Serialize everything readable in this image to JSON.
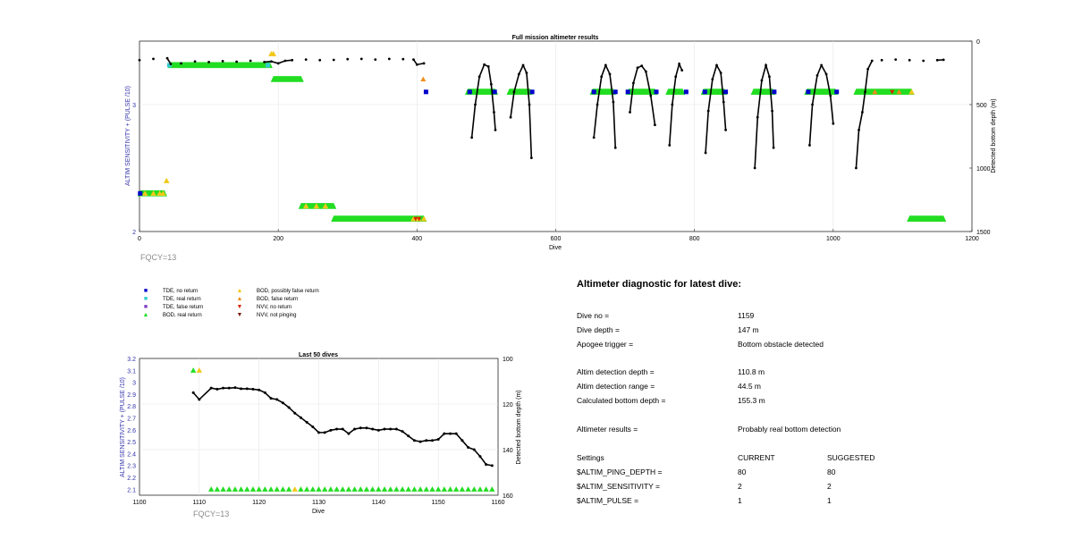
{
  "main_chart": {
    "title": "Full mission altimeter results",
    "xlabel": "Dive",
    "ylabel_left": "ALTIM SENSITIVITY + (PULSE /10)",
    "ylabel_right": "Detected bottom depth (m)",
    "x_ticks": [
      "0",
      "200",
      "400",
      "600",
      "800",
      "1000",
      "1200"
    ],
    "y_left_ticks": [
      "2",
      "3"
    ],
    "y_right_ticks": [
      "0",
      "500",
      "1000",
      "1500"
    ],
    "fqcy_label": "FQCY=13"
  },
  "small_chart": {
    "title": "Last 50 dives",
    "xlabel": "Dive",
    "ylabel_left": "ALTIM SENSITIVITY + (PULSE /10)",
    "ylabel_right": "Detected bottom depth (m)",
    "x_ticks": [
      "1100",
      "1110",
      "1120",
      "1130",
      "1140",
      "1150",
      "1160"
    ],
    "y_left_ticks": [
      "2.1",
      "2.2",
      "2.3",
      "2.4",
      "2.5",
      "2.6",
      "2.7",
      "2.8",
      "2.9",
      "3",
      "3.1",
      "3.2"
    ],
    "y_right_ticks": [
      "100",
      "120",
      "140",
      "160"
    ],
    "fqcy_label": "FQCY=13"
  },
  "legend": [
    {
      "symbol": "■",
      "color": "#0000cc",
      "label": "TDE, no return"
    },
    {
      "symbol": "■",
      "color": "#33cccc",
      "label": "TDE, real return"
    },
    {
      "symbol": "■",
      "color": "#7f3fbf",
      "label": "TDE, false return"
    },
    {
      "symbol": "▲",
      "color": "#22dd22",
      "label": "BOD, real return"
    },
    {
      "symbol": "▲",
      "color": "#f2c81a",
      "label": "BOD, possibly false return"
    },
    {
      "symbol": "▲",
      "color": "#f08c1a",
      "label": "BOD, false return"
    },
    {
      "symbol": "▼",
      "color": "#dd2200",
      "label": "NVV, no return"
    },
    {
      "symbol": "▼",
      "color": "#7a1a0a",
      "label": "NVV, not pinging"
    }
  ],
  "diagnostic": {
    "title": "Altimeter diagnostic for latest dive:",
    "rows": [
      {
        "label": "Dive no =",
        "value": "1159",
        "extra": ""
      },
      {
        "label": "Dive depth =",
        "value": "147 m",
        "extra": ""
      },
      {
        "label": "Apogee trigger =",
        "value": "Bottom obstacle detected",
        "extra": ""
      },
      {
        "label": "Altim detection depth =",
        "value": "110.8 m",
        "extra": ""
      },
      {
        "label": "Altim detection range =",
        "value": "44.5 m",
        "extra": ""
      },
      {
        "label": "Calculated bottom depth =",
        "value": "155.3 m",
        "extra": ""
      },
      {
        "label": "Altimeter results =",
        "value": "Probably real bottom detection",
        "extra": ""
      },
      {
        "label": "Settings",
        "value": "CURRENT",
        "extra": "SUGGESTED"
      },
      {
        "label": "$ALTIM_PING_DEPTH =",
        "value": "80",
        "extra": "80"
      },
      {
        "label": "$ALTIM_SENSITIVITY =",
        "value": "2",
        "extra": "2"
      },
      {
        "label": "$ALTIM_PULSE =",
        "value": "1",
        "extra": "1"
      }
    ]
  },
  "colors": {
    "tde_no_return": "#0000cc",
    "tde_real_return": "#33cccc",
    "bod_real_return": "#22dd22",
    "bod_possibly_false": "#f2c81a",
    "bod_false": "#f08c1a",
    "nvv_no_return": "#dd2200",
    "depth_line": "#000000",
    "left_axis_label": "#3333aa"
  },
  "chart_data": [
    {
      "type": "scatter",
      "title": "Full mission altimeter results",
      "xlabel": "Dive",
      "ylabel": "ALTIM SENSITIVITY + (PULSE /10)",
      "y2label": "Detected bottom depth (m)",
      "xlim": [
        0,
        1200
      ],
      "ylim": [
        2,
        3.5
      ],
      "y2lim": [
        1500,
        0
      ],
      "grid": true,
      "bod_real_segments": [
        {
          "x0": 1,
          "x1": 36,
          "y": 2.3
        },
        {
          "x0": 45,
          "x1": 188,
          "y": 3.31
        },
        {
          "x0": 193,
          "x1": 233,
          "y": 3.2
        },
        {
          "x0": 233,
          "x1": 280,
          "y": 2.2
        },
        {
          "x0": 280,
          "x1": 410,
          "y": 2.1
        },
        {
          "x0": 473,
          "x1": 513,
          "y": 3.1
        },
        {
          "x0": 533,
          "x1": 563,
          "y": 3.1
        },
        {
          "x0": 653,
          "x1": 683,
          "y": 3.1
        },
        {
          "x0": 705,
          "x1": 743,
          "y": 3.1
        },
        {
          "x0": 762,
          "x1": 783,
          "y": 3.1
        },
        {
          "x0": 813,
          "x1": 843,
          "y": 3.1
        },
        {
          "x0": 885,
          "x1": 913,
          "y": 3.1
        },
        {
          "x0": 962,
          "x1": 1003,
          "y": 3.1
        },
        {
          "x0": 1033,
          "x1": 1113,
          "y": 3.1
        },
        {
          "x0": 1110,
          "x1": 1159,
          "y": 2.1
        }
      ],
      "bod_possibly_false_points": [
        {
          "x": 8,
          "y": 2.3
        },
        {
          "x": 20,
          "y": 2.3
        },
        {
          "x": 29,
          "y": 2.3
        },
        {
          "x": 34,
          "y": 2.3
        },
        {
          "x": 39,
          "y": 2.4
        },
        {
          "x": 190,
          "y": 3.4
        },
        {
          "x": 193,
          "y": 3.4
        },
        {
          "x": 240,
          "y": 2.2
        },
        {
          "x": 255,
          "y": 2.2
        },
        {
          "x": 268,
          "y": 2.2
        },
        {
          "x": 395,
          "y": 2.1
        },
        {
          "x": 402,
          "y": 2.1
        },
        {
          "x": 410,
          "y": 2.1
        },
        {
          "x": 1113,
          "y": 3.1
        }
      ],
      "bod_false_points": [
        {
          "x": 409,
          "y": 3.2
        },
        {
          "x": 1060,
          "y": 3.1
        },
        {
          "x": 1095,
          "y": 3.1
        }
      ],
      "nvv_no_return_points": [
        {
          "x": 398,
          "y": 2.1
        },
        {
          "x": 403,
          "y": 2.1
        },
        {
          "x": 1085,
          "y": 3.1
        }
      ],
      "tde_no_return_points": [
        {
          "x": 1,
          "y": 2.3
        },
        {
          "x": 413,
          "y": 3.1
        },
        {
          "x": 476,
          "y": 3.1
        },
        {
          "x": 512,
          "y": 3.1
        },
        {
          "x": 566,
          "y": 3.1
        },
        {
          "x": 655,
          "y": 3.1
        },
        {
          "x": 686,
          "y": 3.1
        },
        {
          "x": 704,
          "y": 3.1
        },
        {
          "x": 745,
          "y": 3.1
        },
        {
          "x": 788,
          "y": 3.1
        },
        {
          "x": 815,
          "y": 3.1
        },
        {
          "x": 845,
          "y": 3.1
        },
        {
          "x": 915,
          "y": 3.1
        },
        {
          "x": 964,
          "y": 3.1
        },
        {
          "x": 1005,
          "y": 3.1
        }
      ],
      "tde_real_return_points": [
        {
          "x": 43,
          "y": 3.31
        },
        {
          "x": 185,
          "y": 3.31
        }
      ],
      "depth_series": [
        {
          "x": 0,
          "y": 150
        },
        {
          "x": 20,
          "y": 140
        },
        {
          "x": 40,
          "y": 135
        },
        {
          "x": 45,
          "y": 180
        },
        {
          "x": 60,
          "y": 175
        },
        {
          "x": 80,
          "y": 160
        },
        {
          "x": 100,
          "y": 165
        },
        {
          "x": 120,
          "y": 158
        },
        {
          "x": 140,
          "y": 162
        },
        {
          "x": 160,
          "y": 155
        },
        {
          "x": 180,
          "y": 165
        },
        {
          "x": 190,
          "y": 160
        },
        {
          "x": 200,
          "y": 175
        },
        {
          "x": 210,
          "y": 155
        },
        {
          "x": 220,
          "y": 150
        },
        {
          "x": 240,
          "y": 145
        },
        {
          "x": 260,
          "y": 150
        },
        {
          "x": 280,
          "y": 148
        },
        {
          "x": 300,
          "y": 142
        },
        {
          "x": 320,
          "y": 140
        },
        {
          "x": 340,
          "y": 145
        },
        {
          "x": 360,
          "y": 140
        },
        {
          "x": 380,
          "y": 142
        },
        {
          "x": 395,
          "y": 145
        },
        {
          "x": 400,
          "y": 185
        },
        {
          "x": 410,
          "y": 175
        },
        {
          "x": 479,
          "y": 760
        },
        {
          "x": 484,
          "y": 500
        },
        {
          "x": 490,
          "y": 280
        },
        {
          "x": 497,
          "y": 185
        },
        {
          "x": 503,
          "y": 200
        },
        {
          "x": 507,
          "y": 340
        },
        {
          "x": 511,
          "y": 560
        },
        {
          "x": 513,
          "y": 700
        },
        {
          "x": 535,
          "y": 600
        },
        {
          "x": 540,
          "y": 400
        },
        {
          "x": 547,
          "y": 260
        },
        {
          "x": 553,
          "y": 190
        },
        {
          "x": 558,
          "y": 250
        },
        {
          "x": 562,
          "y": 500
        },
        {
          "x": 565,
          "y": 920
        },
        {
          "x": 655,
          "y": 760
        },
        {
          "x": 660,
          "y": 500
        },
        {
          "x": 666,
          "y": 280
        },
        {
          "x": 672,
          "y": 190
        },
        {
          "x": 678,
          "y": 260
        },
        {
          "x": 683,
          "y": 480
        },
        {
          "x": 686,
          "y": 840
        },
        {
          "x": 707,
          "y": 560
        },
        {
          "x": 712,
          "y": 330
        },
        {
          "x": 718,
          "y": 210
        },
        {
          "x": 724,
          "y": 195
        },
        {
          "x": 730,
          "y": 240
        },
        {
          "x": 737,
          "y": 430
        },
        {
          "x": 743,
          "y": 660
        },
        {
          "x": 764,
          "y": 820
        },
        {
          "x": 768,
          "y": 500
        },
        {
          "x": 773,
          "y": 280
        },
        {
          "x": 778,
          "y": 180
        },
        {
          "x": 782,
          "y": 230
        },
        {
          "x": 816,
          "y": 880
        },
        {
          "x": 820,
          "y": 550
        },
        {
          "x": 826,
          "y": 300
        },
        {
          "x": 832,
          "y": 190
        },
        {
          "x": 838,
          "y": 250
        },
        {
          "x": 842,
          "y": 480
        },
        {
          "x": 845,
          "y": 700
        },
        {
          "x": 887,
          "y": 1000
        },
        {
          "x": 891,
          "y": 600
        },
        {
          "x": 897,
          "y": 310
        },
        {
          "x": 903,
          "y": 190
        },
        {
          "x": 908,
          "y": 280
        },
        {
          "x": 912,
          "y": 550
        },
        {
          "x": 914,
          "y": 840
        },
        {
          "x": 966,
          "y": 820
        },
        {
          "x": 970,
          "y": 500
        },
        {
          "x": 977,
          "y": 270
        },
        {
          "x": 983,
          "y": 190
        },
        {
          "x": 990,
          "y": 260
        },
        {
          "x": 996,
          "y": 430
        },
        {
          "x": 1000,
          "y": 650
        },
        {
          "x": 1033,
          "y": 1000
        },
        {
          "x": 1037,
          "y": 700
        },
        {
          "x": 1042,
          "y": 560
        },
        {
          "x": 1046,
          "y": 400
        },
        {
          "x": 1050,
          "y": 220
        },
        {
          "x": 1056,
          "y": 155
        },
        {
          "x": 1070,
          "y": 150
        },
        {
          "x": 1090,
          "y": 145
        },
        {
          "x": 1110,
          "y": 150
        },
        {
          "x": 1130,
          "y": 155
        },
        {
          "x": 1150,
          "y": 150
        },
        {
          "x": 1159,
          "y": 147
        }
      ]
    },
    {
      "type": "scatter",
      "title": "Last 50 dives",
      "xlabel": "Dive",
      "ylabel": "ALTIM SENSITIVITY + (PULSE /10)",
      "y2label": "Detected bottom depth (m)",
      "xlim": [
        1100,
        1160
      ],
      "ylim": [
        2.05,
        3.2
      ],
      "y2lim": [
        160,
        100
      ],
      "grid": true,
      "bod_real_points": [
        {
          "x": 1109,
          "y": 3.1
        },
        {
          "x": 1112,
          "y": 2.1
        },
        {
          "x": 1113,
          "y": 2.1
        },
        {
          "x": 1114,
          "y": 2.1
        },
        {
          "x": 1115,
          "y": 2.1
        },
        {
          "x": 1116,
          "y": 2.1
        },
        {
          "x": 1117,
          "y": 2.1
        },
        {
          "x": 1118,
          "y": 2.1
        },
        {
          "x": 1119,
          "y": 2.1
        },
        {
          "x": 1120,
          "y": 2.1
        },
        {
          "x": 1121,
          "y": 2.1
        },
        {
          "x": 1122,
          "y": 2.1
        },
        {
          "x": 1123,
          "y": 2.1
        },
        {
          "x": 1124,
          "y": 2.1
        },
        {
          "x": 1125,
          "y": 2.1
        },
        {
          "x": 1127,
          "y": 2.1
        },
        {
          "x": 1128,
          "y": 2.1
        },
        {
          "x": 1129,
          "y": 2.1
        },
        {
          "x": 1130,
          "y": 2.1
        },
        {
          "x": 1131,
          "y": 2.1
        },
        {
          "x": 1132,
          "y": 2.1
        },
        {
          "x": 1133,
          "y": 2.1
        },
        {
          "x": 1134,
          "y": 2.1
        },
        {
          "x": 1135,
          "y": 2.1
        },
        {
          "x": 1136,
          "y": 2.1
        },
        {
          "x": 1137,
          "y": 2.1
        },
        {
          "x": 1138,
          "y": 2.1
        },
        {
          "x": 1139,
          "y": 2.1
        },
        {
          "x": 1140,
          "y": 2.1
        },
        {
          "x": 1141,
          "y": 2.1
        },
        {
          "x": 1142,
          "y": 2.1
        },
        {
          "x": 1143,
          "y": 2.1
        },
        {
          "x": 1144,
          "y": 2.1
        },
        {
          "x": 1145,
          "y": 2.1
        },
        {
          "x": 1146,
          "y": 2.1
        },
        {
          "x": 1147,
          "y": 2.1
        },
        {
          "x": 1148,
          "y": 2.1
        },
        {
          "x": 1149,
          "y": 2.1
        },
        {
          "x": 1150,
          "y": 2.1
        },
        {
          "x": 1151,
          "y": 2.1
        },
        {
          "x": 1152,
          "y": 2.1
        },
        {
          "x": 1153,
          "y": 2.1
        },
        {
          "x": 1154,
          "y": 2.1
        },
        {
          "x": 1155,
          "y": 2.1
        },
        {
          "x": 1156,
          "y": 2.1
        },
        {
          "x": 1157,
          "y": 2.1
        },
        {
          "x": 1158,
          "y": 2.1
        },
        {
          "x": 1159,
          "y": 2.1
        }
      ],
      "bod_possibly_false_points": [
        {
          "x": 1110,
          "y": 3.1
        },
        {
          "x": 1126,
          "y": 2.1
        }
      ],
      "depth_series": [
        {
          "x": 1109,
          "y": 115
        },
        {
          "x": 1110,
          "y": 118
        },
        {
          "x": 1112,
          "y": 113
        },
        {
          "x": 1113,
          "y": 113.5
        },
        {
          "x": 1114,
          "y": 113
        },
        {
          "x": 1115,
          "y": 113
        },
        {
          "x": 1116,
          "y": 112.8
        },
        {
          "x": 1117,
          "y": 113.3
        },
        {
          "x": 1118,
          "y": 113.3
        },
        {
          "x": 1119,
          "y": 113.5
        },
        {
          "x": 1120,
          "y": 113.8
        },
        {
          "x": 1121,
          "y": 115
        },
        {
          "x": 1122,
          "y": 117.5
        },
        {
          "x": 1123,
          "y": 118
        },
        {
          "x": 1124,
          "y": 119.5
        },
        {
          "x": 1125,
          "y": 121.5
        },
        {
          "x": 1126,
          "y": 124
        },
        {
          "x": 1127,
          "y": 126
        },
        {
          "x": 1128,
          "y": 128
        },
        {
          "x": 1129,
          "y": 130
        },
        {
          "x": 1130,
          "y": 132.5
        },
        {
          "x": 1131,
          "y": 132.5
        },
        {
          "x": 1132,
          "y": 131.5
        },
        {
          "x": 1133,
          "y": 131
        },
        {
          "x": 1134,
          "y": 131
        },
        {
          "x": 1135,
          "y": 133
        },
        {
          "x": 1136,
          "y": 131
        },
        {
          "x": 1137,
          "y": 130.5
        },
        {
          "x": 1138,
          "y": 130.5
        },
        {
          "x": 1139,
          "y": 131
        },
        {
          "x": 1140,
          "y": 131.5
        },
        {
          "x": 1141,
          "y": 131
        },
        {
          "x": 1142,
          "y": 131
        },
        {
          "x": 1143,
          "y": 131
        },
        {
          "x": 1144,
          "y": 132
        },
        {
          "x": 1145,
          "y": 134
        },
        {
          "x": 1146,
          "y": 136
        },
        {
          "x": 1147,
          "y": 136.5
        },
        {
          "x": 1148,
          "y": 136
        },
        {
          "x": 1149,
          "y": 136
        },
        {
          "x": 1150,
          "y": 135.5
        },
        {
          "x": 1151,
          "y": 133
        },
        {
          "x": 1152,
          "y": 133
        },
        {
          "x": 1153,
          "y": 133
        },
        {
          "x": 1154,
          "y": 136
        },
        {
          "x": 1155,
          "y": 139
        },
        {
          "x": 1156,
          "y": 140
        },
        {
          "x": 1157,
          "y": 143
        },
        {
          "x": 1158,
          "y": 146.5
        },
        {
          "x": 1159,
          "y": 147
        }
      ]
    }
  ]
}
